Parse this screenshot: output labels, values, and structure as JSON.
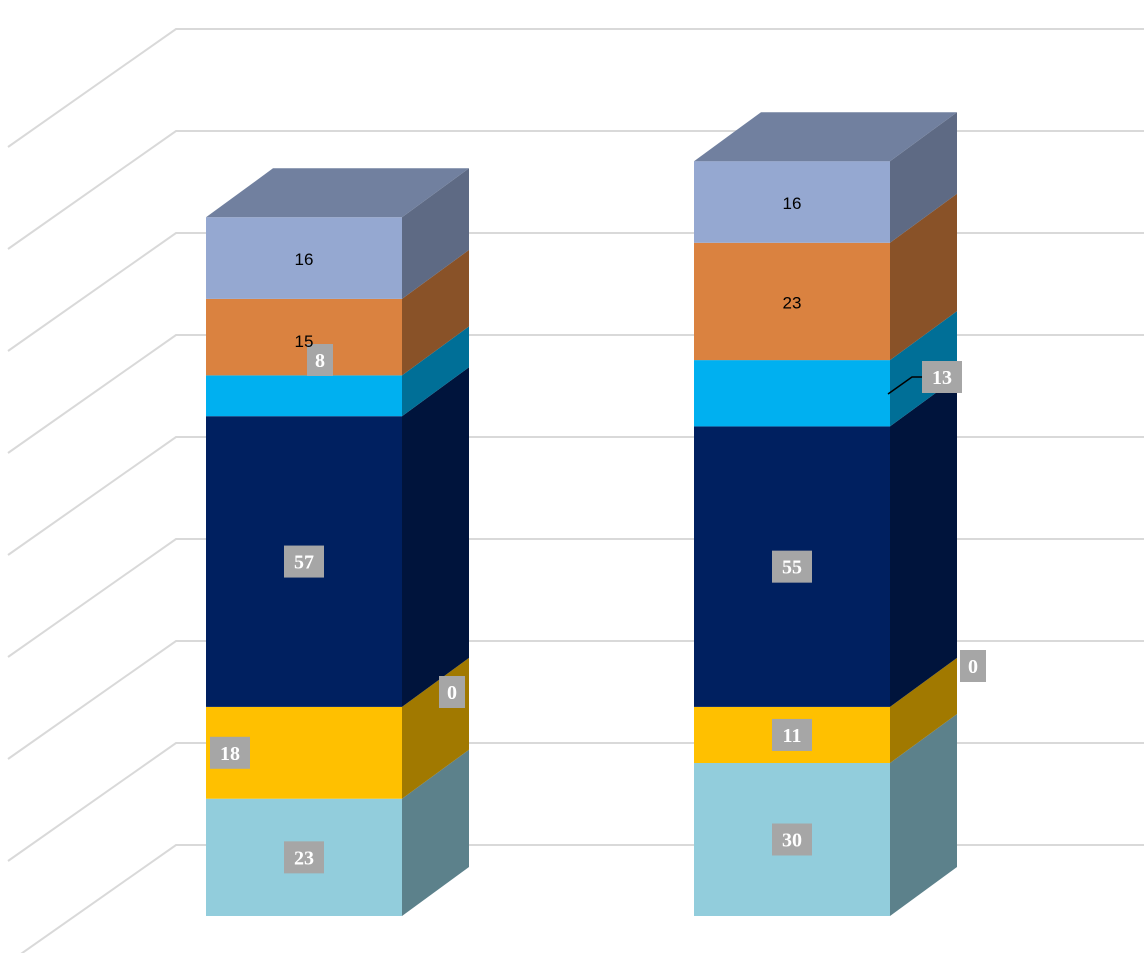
{
  "chart_data": {
    "type": "bar",
    "stacked": true,
    "three_d": true,
    "categories": [
      "",
      ""
    ],
    "series": [
      {
        "color": "#92CDDC",
        "values": [
          23,
          30
        ]
      },
      {
        "color": "#FFC000",
        "values": [
          18,
          11
        ]
      },
      {
        "color": "#000000",
        "values": [
          0,
          0
        ]
      },
      {
        "color": "#002060",
        "values": [
          57,
          55
        ]
      },
      {
        "color": "#00B0F0",
        "values": [
          8,
          13
        ]
      },
      {
        "color": "#DA8240",
        "values": [
          15,
          23
        ]
      },
      {
        "color": "#95A8D1",
        "values": [
          16,
          16
        ]
      }
    ],
    "value_labels": [
      [
        "23",
        "18",
        "0",
        "57",
        "8",
        "15",
        "16"
      ],
      [
        "30",
        "11",
        "0",
        "55",
        "13",
        "23",
        "16"
      ]
    ],
    "ylim": [
      0,
      160
    ],
    "gridlines": true,
    "legend": "none"
  }
}
